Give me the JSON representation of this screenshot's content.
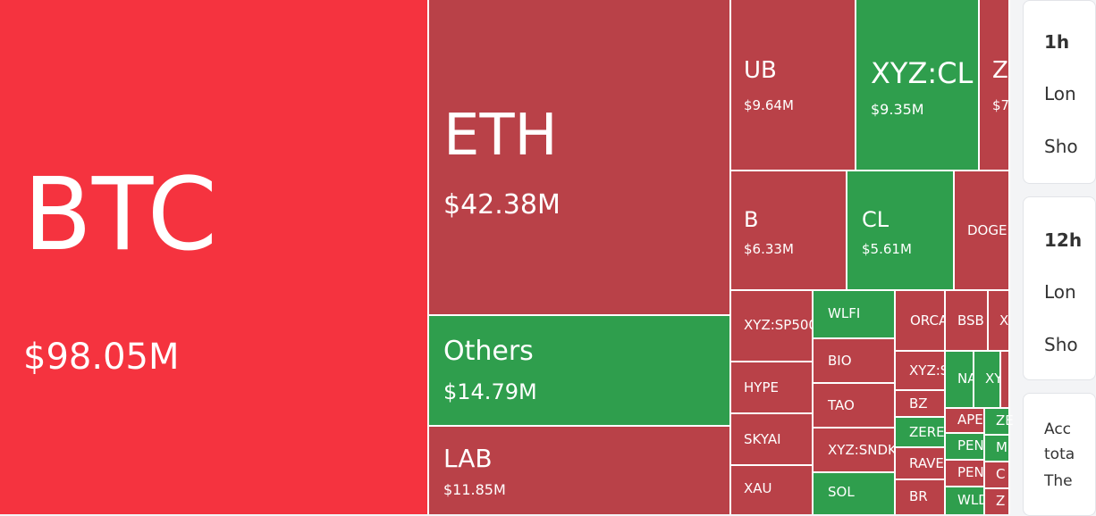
{
  "treemap": {
    "tiles": [
      {
        "label": "BTC",
        "value": "$98.05M"
      },
      {
        "label": "ETH",
        "value": "$42.38M"
      },
      {
        "label": "Others",
        "value": "$14.79M"
      },
      {
        "label": "LAB",
        "value": "$11.85M"
      },
      {
        "label": "UB",
        "value": "$9.64M"
      },
      {
        "label": "XYZ:CL",
        "value": "$9.35M"
      },
      {
        "label": "Z",
        "value": "$7"
      },
      {
        "label": "B",
        "value": "$6.33M"
      },
      {
        "label": "CL",
        "value": "$5.61M"
      },
      {
        "label": "DOGE"
      },
      {
        "label": "XYZ:SP500"
      },
      {
        "label": "WLFI"
      },
      {
        "label": "ORCA"
      },
      {
        "label": "BSB"
      },
      {
        "label": "X"
      },
      {
        "label": "HYPE"
      },
      {
        "label": "BIO"
      },
      {
        "label": "XYZ:S"
      },
      {
        "label": "NA"
      },
      {
        "label": "XY"
      },
      {
        "label": "TAO"
      },
      {
        "label": "BZ"
      },
      {
        "label": "APE"
      },
      {
        "label": "ZE"
      },
      {
        "label": "SKYAI"
      },
      {
        "label": "XYZ:SNDK"
      },
      {
        "label": "ZERE"
      },
      {
        "label": "PEN"
      },
      {
        "label": "M"
      },
      {
        "label": "RAVE"
      },
      {
        "label": "PEN"
      },
      {
        "label": "C"
      },
      {
        "label": "XAU"
      },
      {
        "label": "SOL"
      },
      {
        "label": "BR"
      },
      {
        "label": "WLD"
      },
      {
        "label": "Z"
      }
    ]
  },
  "panel": {
    "cards": [
      {
        "lines": [
          "1h",
          "Lon",
          "Sho"
        ]
      },
      {
        "lines": [
          "12h",
          "Lon",
          "Sho"
        ]
      },
      {
        "lines": [
          "Acc",
          "tota",
          "The"
        ]
      }
    ]
  }
}
